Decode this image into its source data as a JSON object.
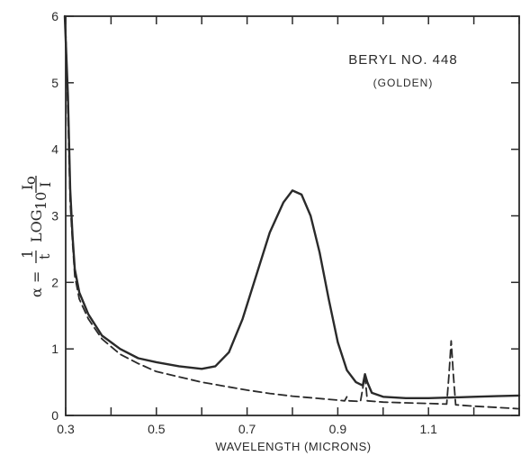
{
  "chart_data": {
    "type": "line",
    "xlabel": "WAVELENGTH (MICRONS)",
    "ylabel": "α = 1/t LOG10 I0/I",
    "ylabel_parts": {
      "alpha": "α =",
      "one": "1",
      "t": "t",
      "log": "LOG",
      "sub10": "10",
      "I0": "I",
      "sub0": "o",
      "I": "I"
    },
    "annotation": {
      "line1": "BERYL NO. 448",
      "line2": "(GOLDEN)"
    },
    "xlim": [
      0.3,
      1.3
    ],
    "ylim": [
      0,
      6
    ],
    "xticks": [
      0.3,
      0.5,
      0.7,
      0.9,
      1.1
    ],
    "xtick_labels": [
      "0.3",
      "0.5",
      "0.7",
      "0.9",
      "1.1"
    ],
    "yticks": [
      0,
      1,
      2,
      3,
      4,
      5,
      6
    ],
    "ytick_labels": [
      "0",
      "1",
      "2",
      "3",
      "4",
      "5",
      "6"
    ],
    "series": [
      {
        "style": "solid",
        "points": [
          [
            0.298,
            6.0
          ],
          [
            0.305,
            4.8
          ],
          [
            0.31,
            3.4
          ],
          [
            0.315,
            2.7
          ],
          [
            0.32,
            2.2
          ],
          [
            0.33,
            1.85
          ],
          [
            0.35,
            1.52
          ],
          [
            0.38,
            1.2
          ],
          [
            0.42,
            1.0
          ],
          [
            0.46,
            0.86
          ],
          [
            0.5,
            0.8
          ],
          [
            0.55,
            0.74
          ],
          [
            0.6,
            0.7
          ],
          [
            0.63,
            0.74
          ],
          [
            0.66,
            0.95
          ],
          [
            0.69,
            1.45
          ],
          [
            0.72,
            2.1
          ],
          [
            0.75,
            2.75
          ],
          [
            0.78,
            3.2
          ],
          [
            0.8,
            3.38
          ],
          [
            0.82,
            3.32
          ],
          [
            0.84,
            3.0
          ],
          [
            0.86,
            2.45
          ],
          [
            0.88,
            1.75
          ],
          [
            0.9,
            1.1
          ],
          [
            0.92,
            0.68
          ],
          [
            0.94,
            0.5
          ],
          [
            0.955,
            0.45
          ],
          [
            0.96,
            0.62
          ],
          [
            0.965,
            0.5
          ],
          [
            0.975,
            0.34
          ],
          [
            1.0,
            0.28
          ],
          [
            1.05,
            0.26
          ],
          [
            1.1,
            0.26
          ],
          [
            1.15,
            0.27
          ],
          [
            1.2,
            0.28
          ],
          [
            1.25,
            0.29
          ],
          [
            1.3,
            0.3
          ]
        ]
      },
      {
        "style": "dashed",
        "points": [
          [
            0.3,
            5.8
          ],
          [
            0.305,
            4.5
          ],
          [
            0.31,
            3.2
          ],
          [
            0.315,
            2.6
          ],
          [
            0.32,
            2.1
          ],
          [
            0.33,
            1.75
          ],
          [
            0.35,
            1.45
          ],
          [
            0.38,
            1.15
          ],
          [
            0.42,
            0.92
          ],
          [
            0.46,
            0.78
          ],
          [
            0.5,
            0.66
          ],
          [
            0.55,
            0.58
          ],
          [
            0.6,
            0.5
          ],
          [
            0.65,
            0.44
          ],
          [
            0.7,
            0.38
          ],
          [
            0.75,
            0.33
          ],
          [
            0.8,
            0.29
          ],
          [
            0.85,
            0.26
          ],
          [
            0.9,
            0.23
          ],
          [
            0.915,
            0.22
          ],
          [
            0.92,
            0.28
          ],
          [
            0.925,
            0.22
          ],
          [
            0.95,
            0.21
          ],
          [
            0.96,
            0.6
          ],
          [
            0.965,
            0.22
          ],
          [
            1.0,
            0.2
          ],
          [
            1.05,
            0.19
          ],
          [
            1.1,
            0.18
          ],
          [
            1.14,
            0.17
          ],
          [
            1.145,
            0.6
          ],
          [
            1.15,
            1.12
          ],
          [
            1.155,
            0.6
          ],
          [
            1.16,
            0.16
          ],
          [
            1.2,
            0.14
          ],
          [
            1.25,
            0.12
          ],
          [
            1.3,
            0.1
          ]
        ]
      }
    ],
    "grid": false,
    "colors": {
      "ink": "#2a2a2a",
      "background": "#ffffff"
    }
  }
}
